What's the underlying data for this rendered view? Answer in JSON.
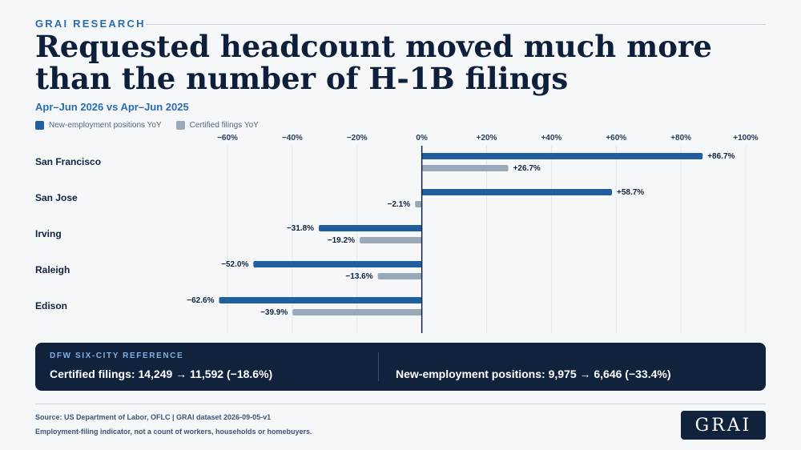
{
  "header": {
    "kicker": "GRAI RESEARCH",
    "title": "Requested headcount moved much more than the number of H-1B filings",
    "subtitle": "Apr–Jun 2026 vs Apr–Jun 2025"
  },
  "colors": {
    "new_employment": "#1f5f9e",
    "certified": "#9aa9b8",
    "axis": "#10233f",
    "grid": "#e2e7ee"
  },
  "legend": {
    "items": [
      {
        "label": "New-employment positions YoY",
        "color": "#1f5f9e"
      },
      {
        "label": "Certified filings YoY",
        "color": "#9aa9b8"
      }
    ]
  },
  "chart_data": {
    "type": "bar",
    "orientation": "horizontal",
    "categories": [
      "San Francisco",
      "San Jose",
      "Irving",
      "Raleigh",
      "Edison"
    ],
    "series": [
      {
        "name": "New-employment positions YoY",
        "values": [
          86.7,
          58.7,
          -31.8,
          -52.0,
          -62.6
        ],
        "labels": [
          "+86.7%",
          "+58.7%",
          "−31.8%",
          "−52.0%",
          "−62.6%"
        ]
      },
      {
        "name": "Certified filings YoY",
        "values": [
          26.7,
          -2.1,
          -19.2,
          -13.6,
          -39.9
        ],
        "labels": [
          "+26.7%",
          "−2.1%",
          "−19.2%",
          "−13.6%",
          "−39.9%"
        ]
      }
    ],
    "xlim": [
      -60,
      100
    ],
    "ticks": [
      -60,
      -40,
      -20,
      0,
      20,
      40,
      60,
      80,
      100
    ],
    "tick_labels": [
      "−60%",
      "−40%",
      "−20%",
      "0%",
      "+20%",
      "+40%",
      "+60%",
      "+80%",
      "+100%"
    ],
    "grid": true,
    "legend_position": "top-left"
  },
  "reference": {
    "label": "DFW SIX-CITY REFERENCE",
    "certified": "Certified filings: 14,249 → 11,592 (−18.6%)",
    "new_employment": "New-employment positions: 9,975 → 6,646 (−33.4%)"
  },
  "footer": {
    "source": "Source: US Department of Labor, OFLC | GRAI dataset 2026-09-05-v1",
    "note": "Employment-filing indicator, not a count of workers, households or homebuyers.",
    "logo": "GRAI"
  }
}
